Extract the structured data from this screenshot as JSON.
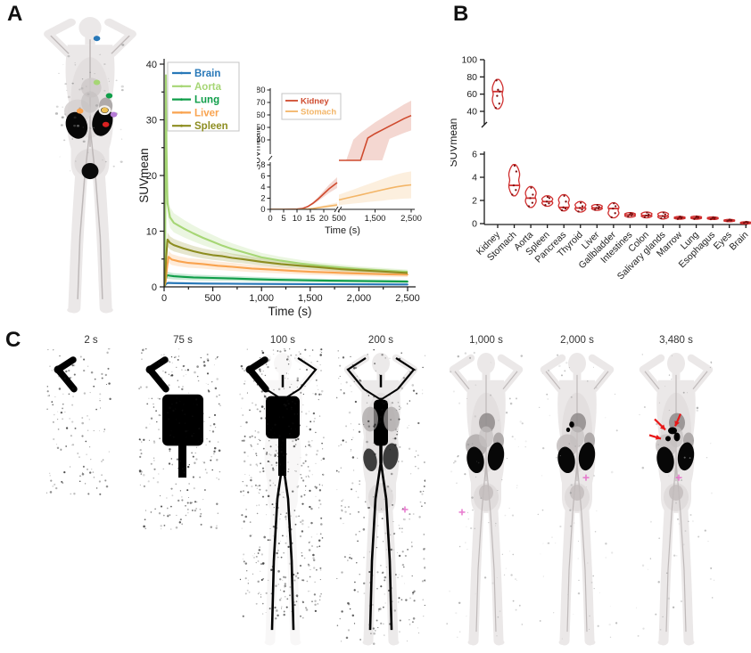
{
  "figure": {
    "panel_a_label": "A",
    "panel_b_label": "B",
    "panel_c_label": "C"
  },
  "panel_a": {
    "body_markers": [
      {
        "organ": "brain",
        "color": "#2878b8",
        "x": 56,
        "y": 29
      },
      {
        "organ": "aorta",
        "color": "#a6d675",
        "x": 56,
        "y": 78
      },
      {
        "organ": "lung",
        "color": "#0f9e49",
        "x": 67,
        "y": 93
      },
      {
        "organ": "liver",
        "color": "#f9a34f",
        "x": 41,
        "y": 110
      },
      {
        "organ": "stomach",
        "color": "#eec154",
        "x": 63,
        "y": 109,
        "ring": true
      },
      {
        "organ": "spleen",
        "color": "#b57bd5",
        "x": 71,
        "y": 114
      },
      {
        "organ": "kidney",
        "color": "#d92121",
        "x": 64,
        "y": 125
      }
    ]
  },
  "panel_c": {
    "stages": [
      {
        "label": "2 s",
        "key": "s2"
      },
      {
        "label": "75 s",
        "key": "s75"
      },
      {
        "label": "100 s",
        "key": "s100"
      },
      {
        "label": "200 s",
        "key": "s200"
      },
      {
        "label": "1,000 s",
        "key": "s1000"
      },
      {
        "label": "2,000 s",
        "key": "s2000"
      },
      {
        "label": "3,480 s",
        "key": "s3480"
      }
    ]
  },
  "chart_data": [
    {
      "id": "tac_main",
      "type": "line",
      "title": "",
      "xlabel": "Time (s)",
      "ylabel": "SUVmean",
      "xlim": [
        0,
        2600
      ],
      "ylim": [
        0,
        40
      ],
      "xticks": [
        0,
        500,
        1000,
        1500,
        2000,
        2500
      ],
      "xtick_labels": [
        "0",
        "500",
        "1,000",
        "1,500",
        "2,000",
        "2,500"
      ],
      "yticks": [
        0,
        10,
        20,
        30,
        40
      ],
      "legend_position": "top-left",
      "grid": false,
      "series": [
        {
          "name": "Brain",
          "color": "#2878b8",
          "band_frac": 0.3,
          "x": [
            0,
            20,
            40,
            100,
            200,
            400,
            600,
            800,
            1000,
            1200,
            1500,
            1800,
            2100,
            2400,
            2500
          ],
          "y": [
            0,
            0.55,
            0.7,
            0.68,
            0.65,
            0.6,
            0.57,
            0.55,
            0.53,
            0.51,
            0.49,
            0.47,
            0.45,
            0.44,
            0.43
          ]
        },
        {
          "name": "Aorta",
          "color": "#a6d675",
          "band_frac": 0.15,
          "x": [
            0,
            10,
            18,
            25,
            35,
            60,
            100,
            150,
            200,
            300,
            400,
            500,
            600,
            700,
            800,
            1000,
            1200,
            1400,
            1600,
            1800,
            2000,
            2200,
            2400,
            2500
          ],
          "y": [
            0,
            3,
            38,
            25,
            15,
            12.5,
            11.5,
            11,
            10.5,
            9.6,
            8.8,
            8.1,
            7.4,
            6.8,
            6.3,
            5.3,
            4.7,
            4.2,
            3.8,
            3.5,
            3.2,
            3.0,
            2.8,
            2.7
          ]
        },
        {
          "name": "Lung",
          "color": "#0f9e49",
          "band_frac": 0.3,
          "x": [
            0,
            10,
            20,
            30,
            60,
            100,
            200,
            300,
            500,
            700,
            900,
            1100,
            1400,
            1700,
            2000,
            2300,
            2500
          ],
          "y": [
            0,
            0.4,
            1.6,
            2.1,
            2.0,
            1.9,
            1.8,
            1.7,
            1.6,
            1.5,
            1.4,
            1.3,
            1.2,
            1.1,
            1.05,
            1.0,
            0.95
          ]
        },
        {
          "name": "Liver",
          "color": "#f9a34f",
          "band_frac": 0.2,
          "x": [
            0,
            15,
            30,
            45,
            80,
            150,
            250,
            400,
            550,
            700,
            900,
            1100,
            1300,
            1500,
            1700,
            1900,
            2100,
            2300,
            2500
          ],
          "y": [
            0,
            0.8,
            3.5,
            5.4,
            4.9,
            4.6,
            4.3,
            4.1,
            3.8,
            3.6,
            3.3,
            3.1,
            2.9,
            2.7,
            2.6,
            2.45,
            2.35,
            2.25,
            2.2
          ]
        },
        {
          "name": "Spleen",
          "color": "#8d8d21",
          "band_frac": 0.15,
          "x": [
            0,
            10,
            20,
            35,
            60,
            100,
            200,
            300,
            400,
            500,
            600,
            700,
            800,
            1000,
            1200,
            1400,
            1600,
            1800,
            2000,
            2200,
            2400,
            2500
          ],
          "y": [
            0,
            1.5,
            5,
            8.5,
            7.9,
            7.5,
            6.9,
            6.4,
            6.0,
            5.7,
            5.5,
            5.2,
            5.0,
            4.5,
            4.1,
            3.8,
            3.5,
            3.2,
            3.0,
            2.8,
            2.6,
            2.5
          ]
        }
      ]
    },
    {
      "id": "tac_inset",
      "type": "line",
      "xlabel": "Time (s)",
      "ylabel": "SUVmean",
      "x_segments": [
        {
          "range": [
            0,
            25
          ],
          "ticks": [
            0,
            5,
            10,
            15,
            20
          ],
          "tick_labels": [
            "0",
            "5",
            "10",
            "15",
            "20"
          ]
        },
        {
          "range": [
            500,
            2500
          ],
          "ticks": [
            500,
            1500,
            2500
          ],
          "tick_labels": [
            "500",
            "1,500",
            "2,500"
          ]
        }
      ],
      "y_segments": [
        {
          "range": [
            0,
            8
          ],
          "ticks": [
            0,
            2,
            4,
            6,
            8
          ]
        },
        {
          "range": [
            40,
            80
          ],
          "ticks": [
            40,
            50,
            60,
            70,
            80
          ]
        }
      ],
      "legend_position": "top-left",
      "series": [
        {
          "name": "Kidney",
          "color": "#cf4a2e",
          "band_frac": 0.2,
          "x": [
            0,
            5,
            10,
            12,
            14,
            16,
            18,
            20,
            22,
            25,
            500,
            700,
            900,
            1100,
            1300,
            1500,
            1700,
            1900,
            2100,
            2300,
            2500
          ],
          "y": [
            0,
            0,
            0.05,
            0.15,
            0.5,
            1.1,
            1.9,
            2.8,
            3.7,
            4.8,
            23,
            28.5,
            33.5,
            38,
            41.5,
            45,
            48,
            51,
            54,
            57,
            59.5
          ]
        },
        {
          "name": "Stomach",
          "color": "#f3b567",
          "band_frac": 0.55,
          "x": [
            0,
            5,
            10,
            14,
            16,
            18,
            20,
            22,
            25,
            500,
            700,
            900,
            1100,
            1300,
            1500,
            1700,
            1900,
            2100,
            2300,
            2500
          ],
          "y": [
            0,
            0,
            0,
            0.05,
            0.15,
            0.3,
            0.45,
            0.6,
            0.8,
            1.7,
            2.0,
            2.3,
            2.6,
            2.9,
            3.2,
            3.5,
            3.8,
            4.05,
            4.25,
            4.4
          ]
        }
      ]
    },
    {
      "id": "violin",
      "type": "violin",
      "ylabel": "SUVmean",
      "color": "#d02f2f",
      "upper_axis": {
        "range": [
          40,
          100
        ],
        "ticks": [
          40,
          60,
          80,
          100
        ]
      },
      "lower_axis": {
        "range": [
          0,
          6
        ],
        "ticks": [
          0,
          2,
          4,
          6
        ]
      },
      "categories": [
        "Kidney",
        "Stomach",
        "Aorta",
        "Spleen",
        "Pancreas",
        "Thyroid",
        "Liver",
        "Gallbladder",
        "Intestines",
        "Colon",
        "Salivary glands",
        "Marrow",
        "Lung",
        "Esophagus",
        "Eyes",
        "Brain"
      ],
      "stats": [
        {
          "organ": "Kidney",
          "axis": "upper",
          "min": 43,
          "median": 63,
          "max": 77,
          "points": [
            44,
            49,
            58,
            63,
            65,
            76
          ]
        },
        {
          "organ": "Stomach",
          "axis": "lower",
          "min": 2.4,
          "median": 3.3,
          "max": 5.1,
          "points": [
            2.5,
            2.9,
            3.3,
            4.5,
            5.0
          ]
        },
        {
          "organ": "Aorta",
          "axis": "lower",
          "min": 1.4,
          "median": 2.2,
          "max": 3.2,
          "points": [
            1.5,
            1.8,
            2.2,
            2.5,
            3.1
          ]
        },
        {
          "organ": "Spleen",
          "axis": "lower",
          "min": 1.5,
          "median": 1.9,
          "max": 2.4,
          "points": [
            1.6,
            1.75,
            1.9,
            2.2,
            2.3
          ]
        },
        {
          "organ": "Pancreas",
          "axis": "lower",
          "min": 1.1,
          "median": 1.4,
          "max": 2.5,
          "points": [
            1.15,
            1.3,
            1.4,
            1.9,
            2.4
          ]
        },
        {
          "organ": "Thyroid",
          "axis": "lower",
          "min": 1.0,
          "median": 1.35,
          "max": 1.9,
          "points": [
            1.05,
            1.2,
            1.35,
            1.5,
            1.8
          ]
        },
        {
          "organ": "Liver",
          "axis": "lower",
          "min": 1.15,
          "median": 1.35,
          "max": 1.65,
          "points": [
            1.2,
            1.3,
            1.35,
            1.45,
            1.6
          ]
        },
        {
          "organ": "Gallbladder",
          "axis": "lower",
          "min": 0.5,
          "median": 1.3,
          "max": 1.8,
          "points": [
            0.55,
            0.9,
            1.3,
            1.5,
            1.75
          ]
        },
        {
          "organ": "Intestines",
          "axis": "lower",
          "min": 0.55,
          "median": 0.75,
          "max": 0.95,
          "points": [
            0.6,
            0.7,
            0.75,
            0.85,
            0.9
          ]
        },
        {
          "organ": "Colon",
          "axis": "lower",
          "min": 0.5,
          "median": 0.7,
          "max": 1.0,
          "points": [
            0.55,
            0.65,
            0.7,
            0.8,
            0.95
          ]
        },
        {
          "organ": "Salivary glands",
          "axis": "lower",
          "min": 0.4,
          "median": 0.65,
          "max": 1.0,
          "points": [
            0.45,
            0.55,
            0.65,
            0.8,
            0.95
          ]
        },
        {
          "organ": "Marrow",
          "axis": "lower",
          "min": 0.38,
          "median": 0.5,
          "max": 0.62,
          "points": [
            0.4,
            0.45,
            0.5,
            0.55,
            0.6
          ]
        },
        {
          "organ": "Lung",
          "axis": "lower",
          "min": 0.38,
          "median": 0.5,
          "max": 0.65,
          "points": [
            0.4,
            0.48,
            0.5,
            0.55,
            0.62
          ]
        },
        {
          "organ": "Esophagus",
          "axis": "lower",
          "min": 0.35,
          "median": 0.45,
          "max": 0.58,
          "points": [
            0.38,
            0.42,
            0.45,
            0.5,
            0.55
          ]
        },
        {
          "organ": "Eyes",
          "axis": "lower",
          "min": 0.2,
          "median": 0.28,
          "max": 0.36,
          "points": [
            0.22,
            0.26,
            0.28,
            0.3,
            0.34
          ]
        },
        {
          "organ": "Brain",
          "axis": "lower",
          "min": 0.05,
          "median": 0.1,
          "max": 0.16,
          "points": [
            0.06,
            0.08,
            0.1,
            0.12,
            0.15
          ]
        }
      ]
    }
  ]
}
